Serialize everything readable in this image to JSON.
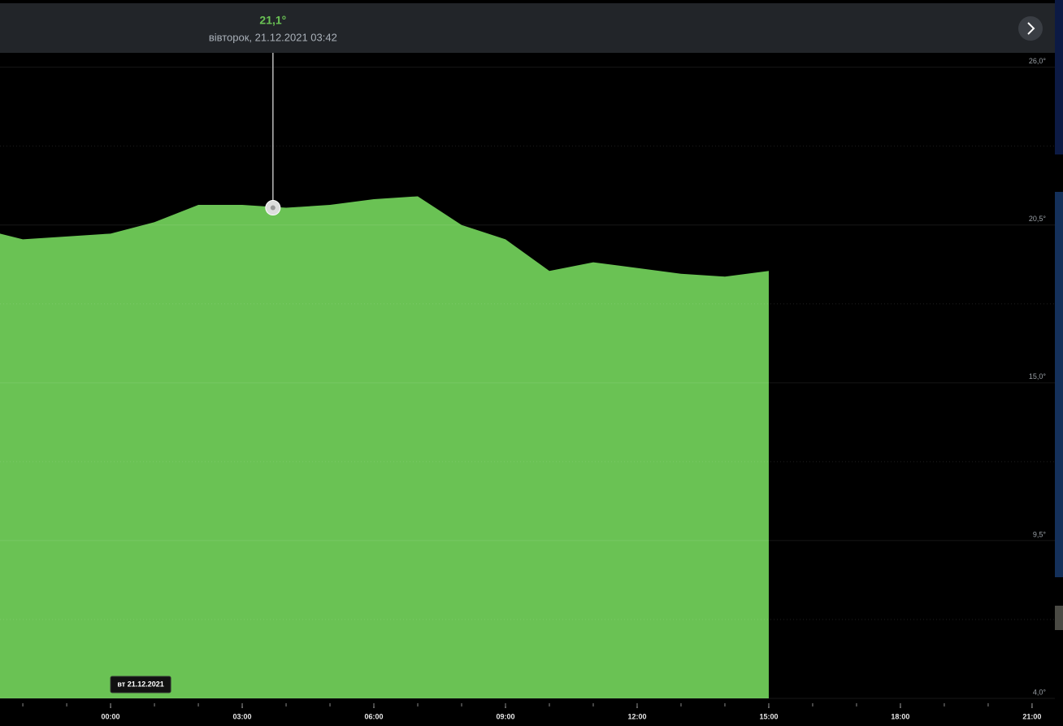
{
  "chart_data": {
    "type": "area",
    "x": [
      -2.52,
      -2,
      -1,
      0,
      1,
      2,
      3,
      4,
      5,
      6,
      7,
      8,
      9,
      10,
      11,
      12,
      13,
      14,
      15
    ],
    "series": [
      {
        "color": "#6ac254",
        "values": [
          20.2,
          20.0,
          20.1,
          20.2,
          20.6,
          21.2,
          21.2,
          21.1,
          21.2,
          21.4,
          21.5,
          20.5,
          20.0,
          18.9,
          19.2,
          19.0,
          18.8,
          18.7,
          18.9
        ]
      }
    ],
    "xlim": [
      -2.52,
      21.52
    ],
    "xticks": [
      {
        "value": 0,
        "label": "00:00"
      },
      {
        "value": 3,
        "label": "03:00"
      },
      {
        "value": 6,
        "label": "06:00"
      },
      {
        "value": 9,
        "label": "09:00"
      },
      {
        "value": 12,
        "label": "12:00"
      },
      {
        "value": 15,
        "label": "15:00"
      },
      {
        "value": 18,
        "label": "18:00"
      },
      {
        "value": 21,
        "label": "21:00"
      }
    ],
    "ylim": [
      4,
      26.5
    ],
    "yticks": [
      {
        "value": 4,
        "label": "4,0°"
      },
      {
        "value": 9.5,
        "label": "9,5°"
      },
      {
        "value": 15,
        "label": "15,0°"
      },
      {
        "value": 20.5,
        "label": "20,5°"
      },
      {
        "value": 26,
        "label": "26,0°"
      }
    ],
    "grid": true,
    "tooltip": {
      "x": 3.7,
      "value": 21.1,
      "value_label": "21,1°",
      "date_label": "вівторок, 21.12.2021 03:42"
    },
    "date_badge": "вт 21.12.2021"
  }
}
